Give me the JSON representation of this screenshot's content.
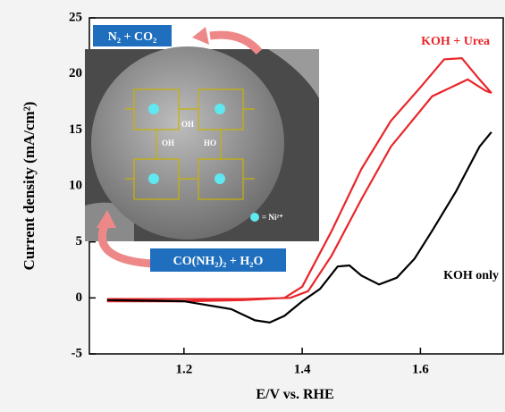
{
  "chart_data": {
    "type": "line",
    "xlabel": "E/V vs. RHE",
    "ylabel": "Current density (mA/cm²)",
    "xlim": [
      1.04,
      1.74
    ],
    "ylim": [
      -5,
      25
    ],
    "xticks": [
      1.2,
      1.4,
      1.6
    ],
    "yticks": [
      -5,
      0,
      5,
      10,
      15,
      20,
      25
    ],
    "series": [
      {
        "name": "KOH + Urea",
        "color": "#e8262a",
        "x": [
          1.07,
          1.2,
          1.3,
          1.37,
          1.4,
          1.45,
          1.5,
          1.55,
          1.6,
          1.64,
          1.67,
          1.7,
          1.72,
          1.71,
          1.68,
          1.62,
          1.55,
          1.5,
          1.45,
          1.41,
          1.38,
          1.3,
          1.07
        ],
        "values": [
          -0.3,
          -0.3,
          -0.2,
          0,
          1,
          6,
          11.5,
          15.8,
          18.8,
          21.3,
          21.4,
          19.5,
          18.3,
          18.5,
          19.5,
          18,
          13.5,
          8.8,
          3.8,
          0.6,
          0,
          -0.1,
          -0.1
        ]
      },
      {
        "name": "KOH only",
        "color": "#000000",
        "x": [
          1.07,
          1.2,
          1.28,
          1.32,
          1.345,
          1.37,
          1.4,
          1.43,
          1.46,
          1.48,
          1.5,
          1.53,
          1.56,
          1.59,
          1.62,
          1.66,
          1.7,
          1.72
        ],
        "values": [
          -0.2,
          -0.3,
          -1.0,
          -2.0,
          -2.2,
          -1.6,
          -0.3,
          0.8,
          2.8,
          2.9,
          2.0,
          1.2,
          1.8,
          3.5,
          6.0,
          9.5,
          13.5,
          14.8
        ]
      }
    ],
    "annotations": [
      "N₂ + CO₂",
      "CO(NH₂)₂ + H₂O",
      "OH",
      "HO",
      "OH",
      "= Ni²⁺"
    ]
  }
}
